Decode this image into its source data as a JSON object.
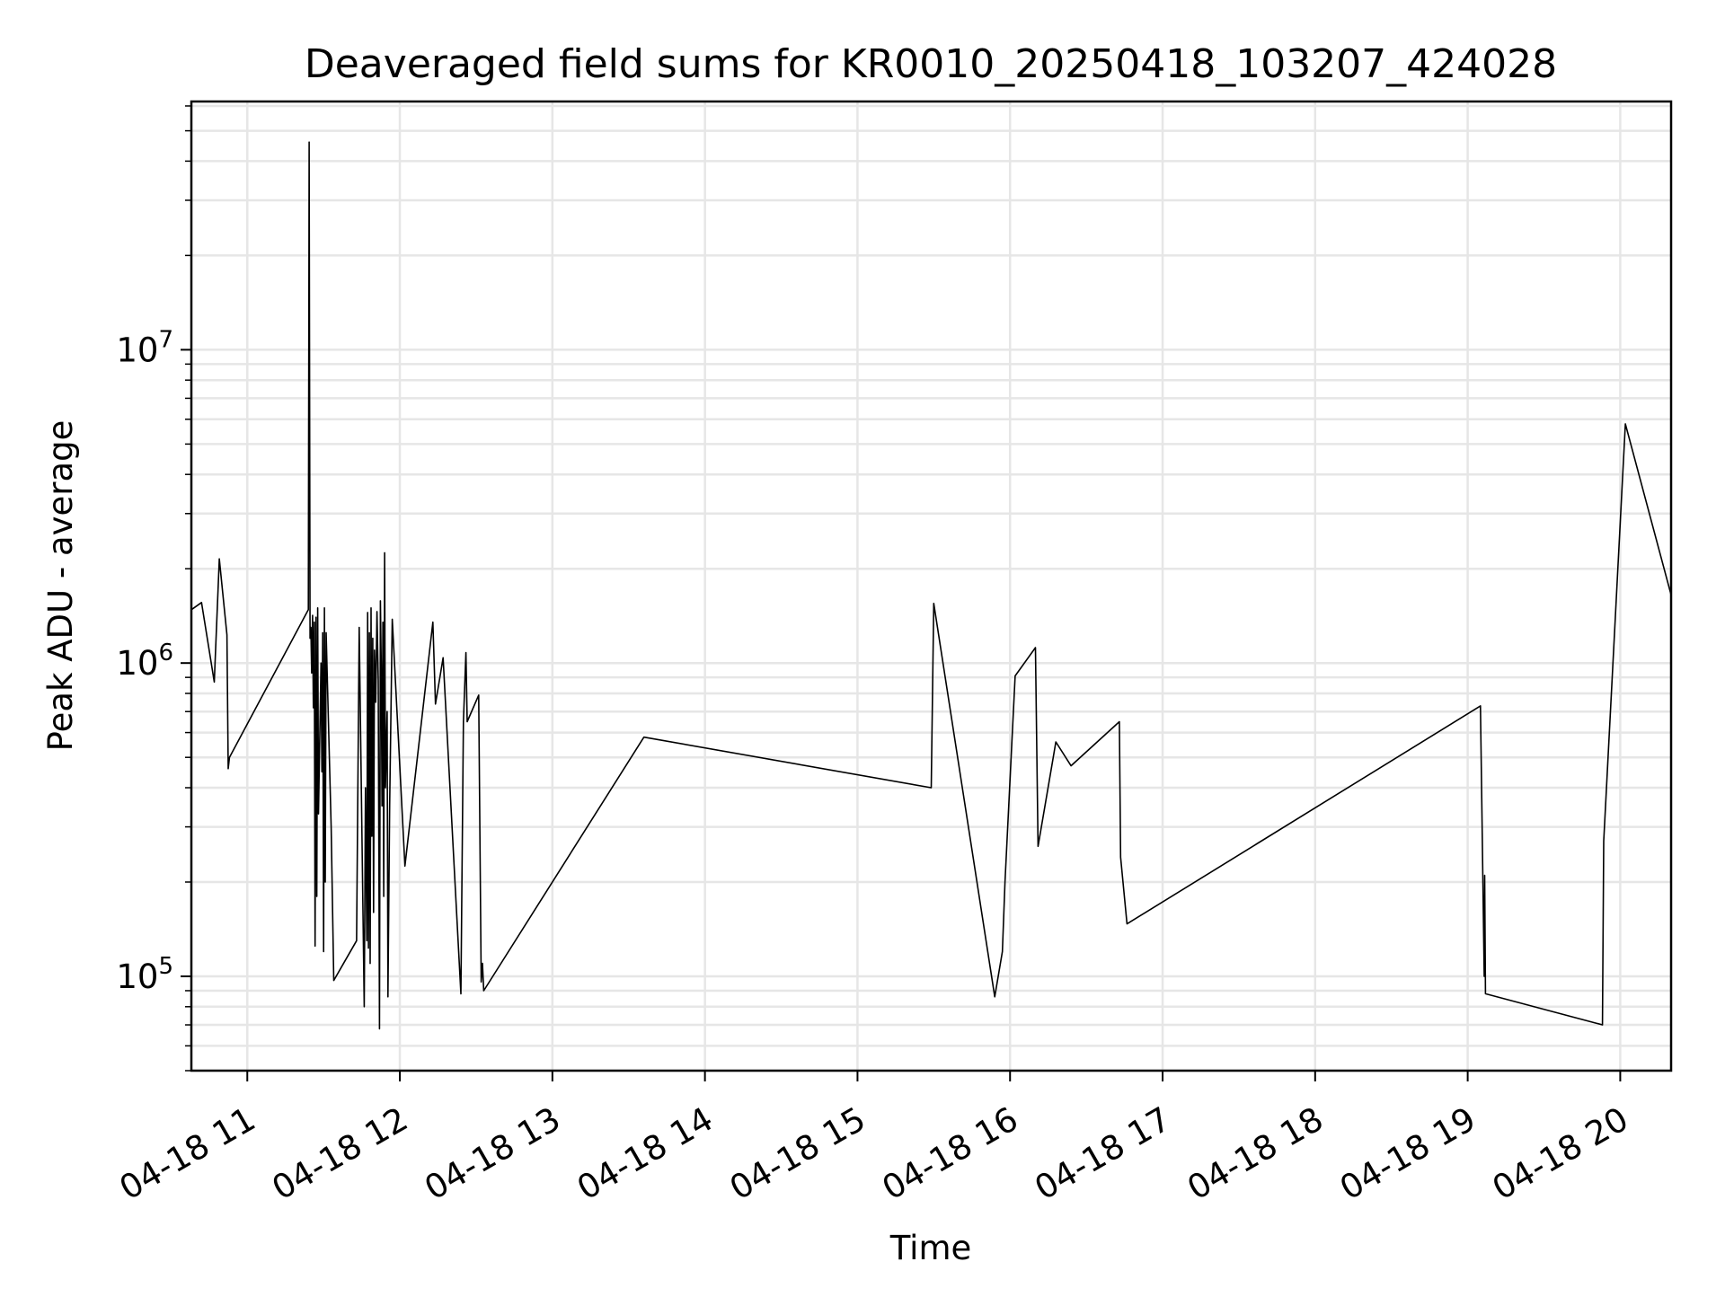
{
  "chart_data": {
    "type": "line",
    "title": "Deaveraged field sums for KR0010_20250418_103207_424028",
    "xlabel": "Time",
    "ylabel": "Peak ADU - average",
    "yscale": "log",
    "ylim": [
      50000,
      62000000
    ],
    "xlim": [
      "2025-04-18T10:38",
      "2025-04-18T20:20"
    ],
    "grid": true,
    "line_color": "#000000",
    "x_ticks": [
      "2025-04-18T11:00",
      "2025-04-18T12:00",
      "2025-04-18T13:00",
      "2025-04-18T14:00",
      "2025-04-18T15:00",
      "2025-04-18T16:00",
      "2025-04-18T17:00",
      "2025-04-18T18:00",
      "2025-04-18T19:00",
      "2025-04-18T20:00"
    ],
    "x_tick_labels": [
      "04-18 11",
      "04-18 12",
      "04-18 13",
      "04-18 14",
      "04-18 15",
      "04-18 16",
      "04-18 17",
      "04-18 18",
      "04-18 19",
      "04-18 20"
    ],
    "y_ticks": [
      100000,
      1000000,
      10000000
    ],
    "y_tick_labels": [
      {
        "base": "10",
        "exp": "5"
      },
      {
        "base": "10",
        "exp": "6"
      },
      {
        "base": "10",
        "exp": "7"
      }
    ],
    "series": [
      {
        "points": [
          [
            "2025-04-18T10:38:00",
            1480000
          ],
          [
            "2025-04-18T10:42:00",
            1560000
          ],
          [
            "2025-04-18T10:47:00",
            870000
          ],
          [
            "2025-04-18T10:49:00",
            2150000
          ],
          [
            "2025-04-18T10:52:00",
            1230000
          ],
          [
            "2025-04-18T10:52:30",
            460000
          ],
          [
            "2025-04-18T10:53:00",
            500000
          ],
          [
            "2025-04-18T11:24:00",
            1480000
          ],
          [
            "2025-04-18T11:24:20",
            46000000
          ],
          [
            "2025-04-18T11:24:40",
            1200000
          ],
          [
            "2025-04-18T11:25:00",
            1300000
          ],
          [
            "2025-04-18T11:25:20",
            930000
          ],
          [
            "2025-04-18T11:25:40",
            1420000
          ],
          [
            "2025-04-18T11:26:00",
            720000
          ],
          [
            "2025-04-18T11:26:20",
            1350000
          ],
          [
            "2025-04-18T11:26:40",
            125000
          ],
          [
            "2025-04-18T11:27:00",
            1400000
          ],
          [
            "2025-04-18T11:27:20",
            180000
          ],
          [
            "2025-04-18T11:27:40",
            1500000
          ],
          [
            "2025-04-18T11:28:00",
            330000
          ],
          [
            "2025-04-18T11:29:00",
            1000000
          ],
          [
            "2025-04-18T11:29:20",
            450000
          ],
          [
            "2025-04-18T11:29:40",
            1250000
          ],
          [
            "2025-04-18T11:30:00",
            120000
          ],
          [
            "2025-04-18T11:30:20",
            1500000
          ],
          [
            "2025-04-18T11:30:40",
            200000
          ],
          [
            "2025-04-18T11:31:00",
            1250000
          ],
          [
            "2025-04-18T11:33:00",
            300000
          ],
          [
            "2025-04-18T11:34:00",
            97000
          ],
          [
            "2025-04-18T11:43:00",
            130000
          ],
          [
            "2025-04-18T11:44:00",
            1300000
          ],
          [
            "2025-04-18T11:46:00",
            80000
          ],
          [
            "2025-04-18T11:46:30",
            400000
          ],
          [
            "2025-04-18T11:47:00",
            130000
          ],
          [
            "2025-04-18T11:47:20",
            1450000
          ],
          [
            "2025-04-18T11:47:40",
            123000
          ],
          [
            "2025-04-18T11:48:00",
            1250000
          ],
          [
            "2025-04-18T11:48:20",
            110000
          ],
          [
            "2025-04-18T11:48:40",
            1500000
          ],
          [
            "2025-04-18T11:49:00",
            280000
          ],
          [
            "2025-04-18T11:49:20",
            1200000
          ],
          [
            "2025-04-18T11:49:40",
            160000
          ],
          [
            "2025-04-18T11:50:00",
            1100000
          ],
          [
            "2025-04-18T11:50:30",
            750000
          ],
          [
            "2025-04-18T11:51:00",
            1460000
          ],
          [
            "2025-04-18T11:51:30",
            880000
          ],
          [
            "2025-04-18T11:52:00",
            68000
          ],
          [
            "2025-04-18T11:52:20",
            1580000
          ],
          [
            "2025-04-18T11:52:40",
            1000000
          ],
          [
            "2025-04-18T11:53:00",
            350000
          ],
          [
            "2025-04-18T11:53:20",
            1350000
          ],
          [
            "2025-04-18T11:53:40",
            180000
          ],
          [
            "2025-04-18T11:54:00",
            2250000
          ],
          [
            "2025-04-18T11:54:20",
            400000
          ],
          [
            "2025-04-18T11:55:00",
            700000
          ],
          [
            "2025-04-18T11:55:20",
            86000
          ],
          [
            "2025-04-18T11:56:00",
            350000
          ],
          [
            "2025-04-18T11:57:00",
            1380000
          ],
          [
            "2025-04-18T12:02:00",
            225000
          ],
          [
            "2025-04-18T12:13:00",
            1350000
          ],
          [
            "2025-04-18T12:14:00",
            740000
          ],
          [
            "2025-04-18T12:17:00",
            1040000
          ],
          [
            "2025-04-18T12:24:00",
            88000
          ],
          [
            "2025-04-18T12:25:00",
            650000
          ],
          [
            "2025-04-18T12:26:00",
            1080000
          ],
          [
            "2025-04-18T12:26:30",
            650000
          ],
          [
            "2025-04-18T12:31:00",
            790000
          ],
          [
            "2025-04-18T12:32:00",
            96000
          ],
          [
            "2025-04-18T12:32:30",
            110000
          ],
          [
            "2025-04-18T12:33:00",
            90000
          ],
          [
            "2025-04-18T13:36:00",
            580000
          ],
          [
            "2025-04-18T15:29:00",
            400000
          ],
          [
            "2025-04-18T15:30:00",
            1550000
          ],
          [
            "2025-04-18T15:54:00",
            86000
          ],
          [
            "2025-04-18T15:57:00",
            120000
          ],
          [
            "2025-04-18T15:58:00",
            200000
          ],
          [
            "2025-04-18T16:02:00",
            910000
          ],
          [
            "2025-04-18T16:10:00",
            1120000
          ],
          [
            "2025-04-18T16:11:00",
            260000
          ],
          [
            "2025-04-18T16:17:00",
            500000
          ],
          [
            "2025-04-18T16:18:00",
            560000
          ],
          [
            "2025-04-18T16:24:00",
            470000
          ],
          [
            "2025-04-18T16:43:00",
            650000
          ],
          [
            "2025-04-18T16:43:30",
            240000
          ],
          [
            "2025-04-18T16:46:00",
            147000
          ],
          [
            "2025-04-18T19:05:00",
            730000
          ],
          [
            "2025-04-18T19:06:30",
            100000
          ],
          [
            "2025-04-18T19:06:40",
            210000
          ],
          [
            "2025-04-18T19:07:00",
            88000
          ],
          [
            "2025-04-18T19:53:00",
            70000
          ],
          [
            "2025-04-18T19:53:30",
            270000
          ],
          [
            "2025-04-18T20:02:00",
            5800000
          ],
          [
            "2025-04-18T20:20:00",
            1650000
          ]
        ]
      }
    ]
  }
}
